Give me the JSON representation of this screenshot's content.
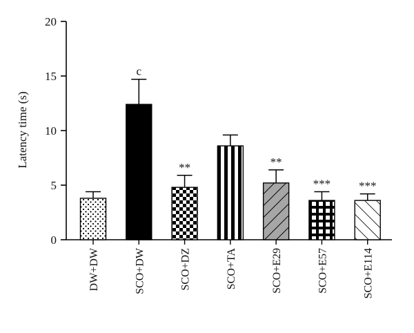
{
  "chart_data": {
    "type": "bar",
    "ylabel": "Latency time (s)",
    "ylim": [
      0,
      20
    ],
    "yticks": [
      0,
      5,
      10,
      15,
      20
    ],
    "categories": [
      "DW+DW",
      "SCO+DW",
      "SCO+DZ",
      "SCO+TA",
      "SCO+E29",
      "SCO+E57",
      "SCO+E114"
    ],
    "values": [
      3.8,
      12.4,
      4.8,
      8.6,
      5.2,
      3.6,
      3.6
    ],
    "errors": [
      0.6,
      2.3,
      1.1,
      1.0,
      1.2,
      0.8,
      0.6
    ],
    "annotations": [
      "",
      "c",
      "**",
      "",
      "**",
      "***",
      "***"
    ],
    "patterns": [
      "dots",
      "solid-black",
      "checker",
      "vertical-stripes",
      "diagonal-gray",
      "grid",
      "diagonal-white"
    ],
    "grid": false,
    "legend": "none"
  }
}
